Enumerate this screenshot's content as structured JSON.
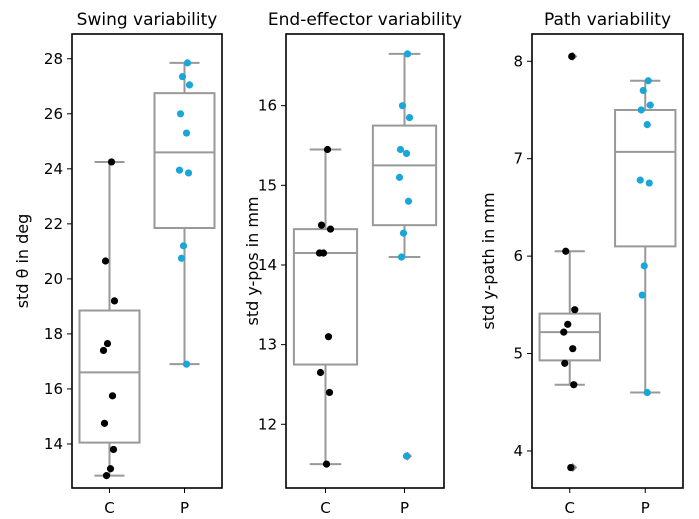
{
  "colors": {
    "C": "#000000",
    "P": "#1aa7d8",
    "box_edge": "#999999",
    "outlier": "#888888"
  },
  "chart_data": [
    {
      "type": "box",
      "title": "Swing variability",
      "ylabel": "std θ in deg",
      "categories": [
        "C",
        "P"
      ],
      "ylim": [
        12.4,
        28.9
      ],
      "yticks": [
        14,
        16,
        18,
        20,
        22,
        24,
        26,
        28
      ],
      "boxes": [
        {
          "category": "C",
          "whislo": 12.85,
          "q1": 14.05,
          "med": 16.6,
          "q3": 18.85,
          "whishi": 24.25,
          "fliers": []
        },
        {
          "category": "P",
          "whislo": 16.9,
          "q1": 21.85,
          "med": 24.6,
          "q3": 26.75,
          "whishi": 27.85,
          "fliers": []
        }
      ],
      "points": [
        {
          "category": "C",
          "values": [
            24.25,
            20.65,
            19.2,
            17.65,
            17.4,
            15.75,
            14.75,
            13.8,
            13.1,
            12.85
          ]
        },
        {
          "category": "P",
          "values": [
            27.85,
            27.35,
            27.05,
            26.0,
            25.3,
            23.95,
            23.85,
            21.2,
            20.75,
            16.9
          ]
        }
      ]
    },
    {
      "type": "box",
      "title": "End-effector variability",
      "ylabel": "std y-pos in mm",
      "categories": [
        "C",
        "P"
      ],
      "ylim": [
        11.2,
        16.9
      ],
      "yticks": [
        12,
        13,
        14,
        15,
        16
      ],
      "boxes": [
        {
          "category": "C",
          "whislo": 11.5,
          "q1": 12.75,
          "med": 14.15,
          "q3": 14.45,
          "whishi": 15.45,
          "fliers": []
        },
        {
          "category": "P",
          "whislo": 14.1,
          "q1": 14.5,
          "med": 15.25,
          "q3": 15.75,
          "whishi": 16.65,
          "fliers": [
            11.6
          ]
        }
      ],
      "points": [
        {
          "category": "C",
          "values": [
            15.45,
            14.5,
            14.45,
            14.15,
            14.15,
            13.1,
            12.65,
            12.4,
            11.5
          ]
        },
        {
          "category": "P",
          "values": [
            16.65,
            16.0,
            15.85,
            15.45,
            15.4,
            15.1,
            14.8,
            14.4,
            14.1,
            11.6
          ]
        }
      ]
    },
    {
      "type": "box",
      "title": "Path variability",
      "ylabel": "std y-path in mm",
      "categories": [
        "C",
        "P"
      ],
      "ylim": [
        3.62,
        8.28
      ],
      "yticks": [
        4,
        5,
        6,
        7,
        8
      ],
      "boxes": [
        {
          "category": "C",
          "whislo": 4.68,
          "q1": 4.93,
          "med": 5.22,
          "q3": 5.41,
          "whishi": 6.05,
          "fliers": [
            8.05,
            3.83
          ]
        },
        {
          "category": "P",
          "whislo": 4.6,
          "q1": 6.1,
          "med": 7.07,
          "q3": 7.5,
          "whishi": 7.8,
          "fliers": []
        }
      ],
      "points": [
        {
          "category": "C",
          "values": [
            8.05,
            6.05,
            5.45,
            5.3,
            5.22,
            5.05,
            4.9,
            4.68,
            3.83
          ]
        },
        {
          "category": "P",
          "values": [
            7.8,
            7.7,
            7.55,
            7.5,
            7.35,
            6.78,
            6.75,
            5.9,
            5.6,
            4.6
          ]
        }
      ]
    }
  ]
}
